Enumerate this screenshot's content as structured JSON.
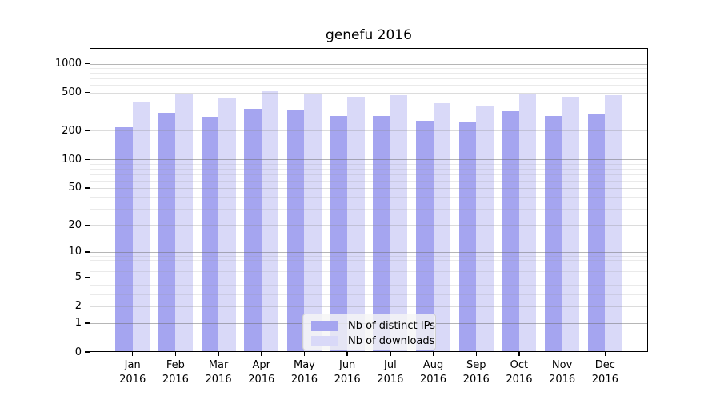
{
  "title": "genefu 2016",
  "legend": {
    "items": [
      {
        "label": "Nb of distinct IPs",
        "color": "#a5a5f0"
      },
      {
        "label": "Nb of downloads",
        "color": "#d9d9f8"
      }
    ]
  },
  "chart_data": {
    "type": "bar",
    "title": "genefu 2016",
    "categories": [
      "Jan 2016",
      "Feb 2016",
      "Mar 2016",
      "Apr 2016",
      "May 2016",
      "Jun 2016",
      "Jul 2016",
      "Aug 2016",
      "Sep 2016",
      "Oct 2016",
      "Nov 2016",
      "Dec 2016"
    ],
    "series": [
      {
        "name": "Nb of distinct IPs",
        "color": "#a5a5f0",
        "values": [
          218,
          305,
          278,
          340,
          328,
          283,
          286,
          256,
          248,
          320,
          283,
          294
        ]
      },
      {
        "name": "Nb of downloads",
        "color": "#d9d9f8",
        "values": [
          396,
          492,
          434,
          521,
          492,
          453,
          470,
          388,
          357,
          482,
          449,
          473
        ]
      }
    ],
    "xlabel": "",
    "ylabel": "",
    "y_scale": "log1p",
    "y_ticks": [
      0,
      1,
      2,
      5,
      10,
      20,
      50,
      100,
      200,
      500,
      1000
    ],
    "ylim": [
      0,
      1458
    ],
    "grid": "horizontal",
    "legend_position": "lower center"
  }
}
